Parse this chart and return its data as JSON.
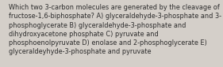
{
  "lines": [
    "Which two 3-carbon molecules are generated by the cleavage of",
    "fructose-1,6-biphosphate? A) glyceraldehyde-3-phosphate and 3-",
    "phosphoglycerate B) glyceraldehyde-3-phosphate and",
    "dihydroxyacetone phosphate C) pyruvate and",
    "phosphoenolpyruvate D) enolase and 2-phosphoglycerate E)",
    "glyceraldeyhyde-3-phosphate and pyruvate"
  ],
  "bg_color": "#d4cfc9",
  "text_color": "#2b2b2b",
  "font_size": 5.85,
  "fig_width": 2.62,
  "fig_height": 0.79
}
